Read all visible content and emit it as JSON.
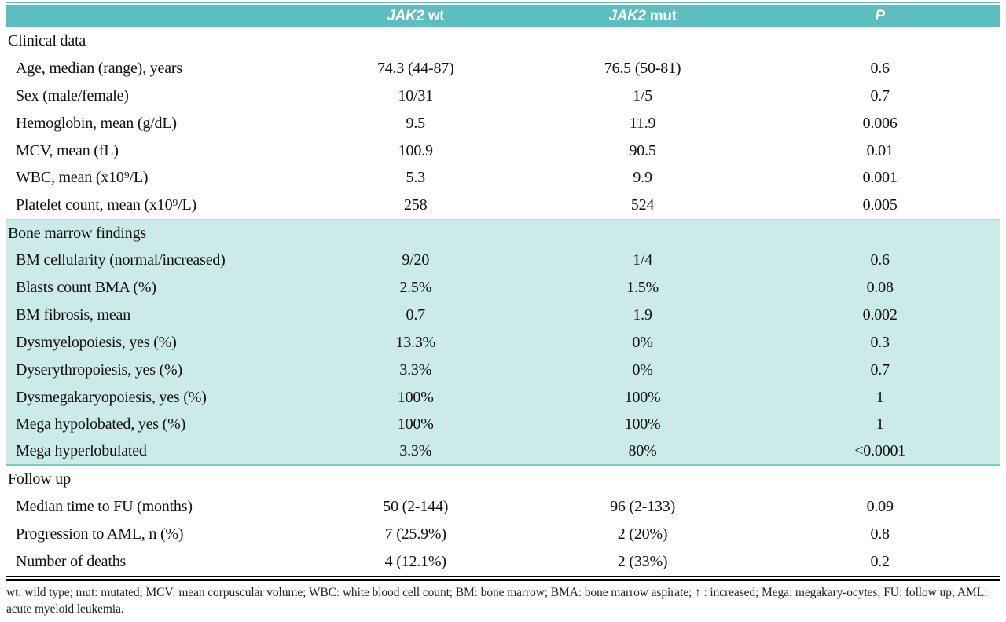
{
  "header": {
    "col_wt": {
      "gene": "JAK2",
      "suffix": "wt"
    },
    "col_mut": {
      "gene": "JAK2",
      "suffix": "mut"
    },
    "col_p": "P"
  },
  "rows": [
    {
      "type": "section",
      "label": "Clinical data"
    },
    {
      "type": "data",
      "label": "Age, median (range), years",
      "wt": "74.3 (44-87)",
      "mut": "76.5 (50-81)",
      "p": "0.6"
    },
    {
      "type": "data",
      "label": "Sex (male/female)",
      "wt": "10/31",
      "mut": "1/5",
      "p": "0.7"
    },
    {
      "type": "data",
      "label": "Hemoglobin, mean (g/dL)",
      "wt": "9.5",
      "mut": "11.9",
      "p": "0.006"
    },
    {
      "type": "data",
      "label": "MCV, mean (fL)",
      "wt": "100.9",
      "mut": "90.5",
      "p": "0.01"
    },
    {
      "type": "data",
      "label": "WBC, mean (x10⁹/L)",
      "wt": "5.3",
      "mut": "9.9",
      "p": "0.001"
    },
    {
      "type": "data",
      "label": "Platelet count, mean (x10⁹/L)",
      "wt": "258",
      "mut": "524",
      "p": "0.005"
    },
    {
      "type": "section",
      "label": "Bone marrow findings"
    },
    {
      "type": "data",
      "label": "BM cellularity (normal/increased)",
      "wt": "9/20",
      "mut": "1/4",
      "p": "0.6"
    },
    {
      "type": "data",
      "label": "Blasts count BMA (%)",
      "wt": "2.5%",
      "mut": "1.5%",
      "p": "0.08"
    },
    {
      "type": "data",
      "label": "BM fibrosis, mean",
      "wt": "0.7",
      "mut": "1.9",
      "p": "0.002"
    },
    {
      "type": "data",
      "label": "Dysmyelopoiesis, yes (%)",
      "wt": "13.3%",
      "mut": "0%",
      "p": "0.3"
    },
    {
      "type": "data",
      "label": "Dyserythropoiesis, yes (%)",
      "wt": "3.3%",
      "mut": "0%",
      "p": "0.7"
    },
    {
      "type": "data",
      "label": "Dysmegakaryopoiesis, yes (%)",
      "wt": "100%",
      "mut": "100%",
      "p": "1"
    },
    {
      "type": "data",
      "label": "Mega hypolobated, yes (%)",
      "wt": "100%",
      "mut": "100%",
      "p": "1"
    },
    {
      "type": "data",
      "label": "Mega hyperlobulated",
      "wt": "3.3%",
      "mut": "80%",
      "p": "<0.0001"
    },
    {
      "type": "section",
      "label": "Follow up"
    },
    {
      "type": "data",
      "label": "Median time to FU (months)",
      "wt": "50 (2-144)",
      "mut": "96 (2-133)",
      "p": "0.09"
    },
    {
      "type": "data",
      "label": "Progression to AML, n (%)",
      "wt": "7 (25.9%)",
      "mut": "2 (20%)",
      "p": "0.8"
    },
    {
      "type": "data",
      "label": "Number of deaths",
      "wt": "4 (12.1%)",
      "mut": "2 (33%)",
      "p": "0.2"
    }
  ],
  "footnote": "wt: wild type; mut: mutated; MCV: mean corpuscular volume; WBC: white blood cell count; BM: bone marrow; BMA: bone marrow aspirate; ↑ : increased; Mega: megakary-ocytes; FU: follow up; AML: acute myeloid leukemia.",
  "colors": {
    "header_teal": "#5ebdbe",
    "section_highlight": "#cbeae8",
    "section_rule": "#7ec8c7"
  }
}
